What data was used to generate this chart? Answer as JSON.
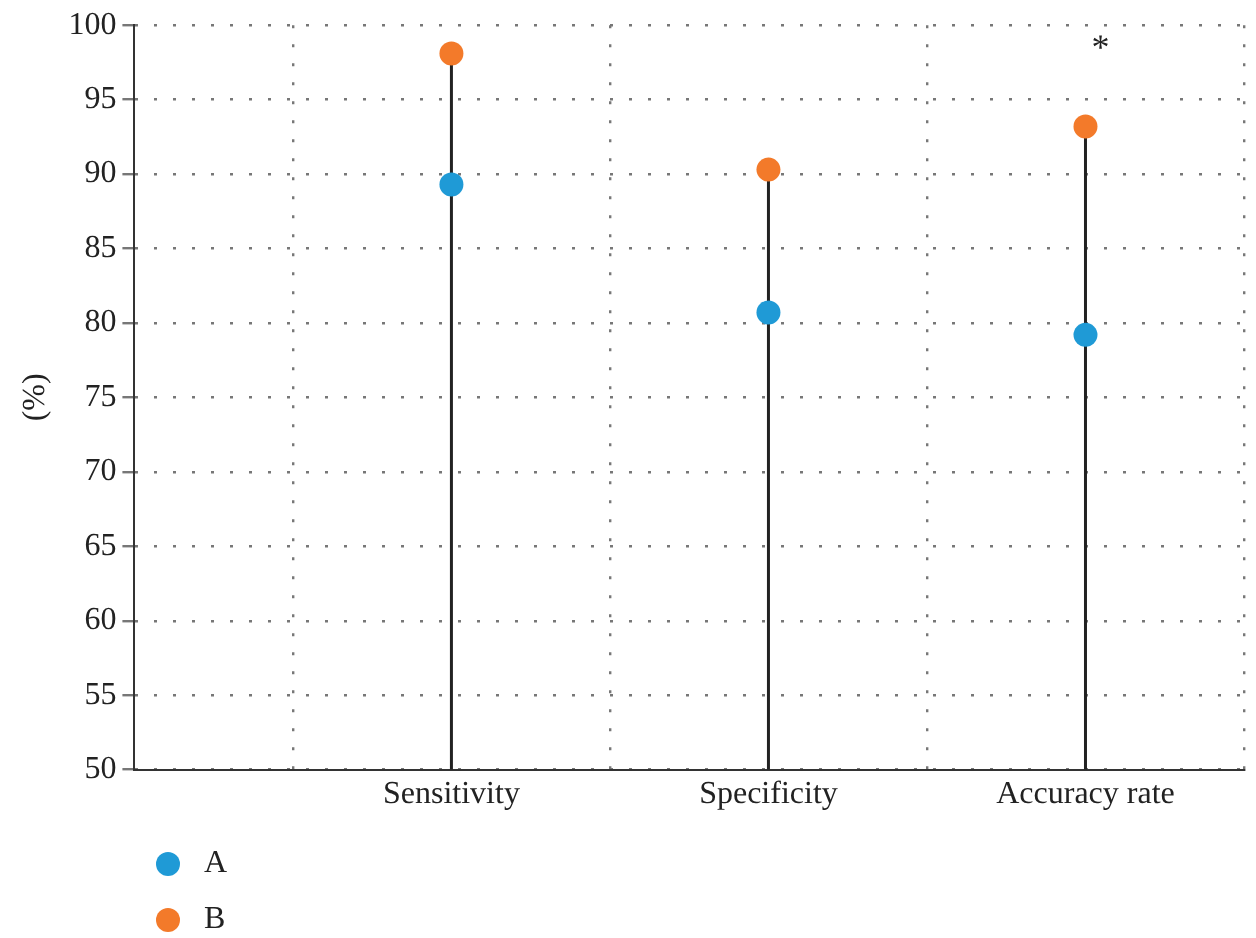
{
  "chart_data": {
    "type": "lollipop",
    "ylabel": "(%)",
    "categories": [
      null,
      "Sensitivity",
      "Specificity",
      "Accuracy rate"
    ],
    "series": [
      {
        "name": "A",
        "color": "#1f9ad6",
        "values": [
          null,
          89.3,
          80.7,
          79.2
        ]
      },
      {
        "name": "B",
        "color": "#f37a2a",
        "values": [
          null,
          98.1,
          90.3,
          93.2
        ]
      }
    ],
    "ylim": [
      50,
      100
    ],
    "yticks": [
      50,
      55,
      60,
      65,
      70,
      75,
      80,
      85,
      90,
      95,
      100
    ],
    "grid": true,
    "legend": "bottom left",
    "marker": "circle",
    "annotations": [
      "*"
    ]
  }
}
